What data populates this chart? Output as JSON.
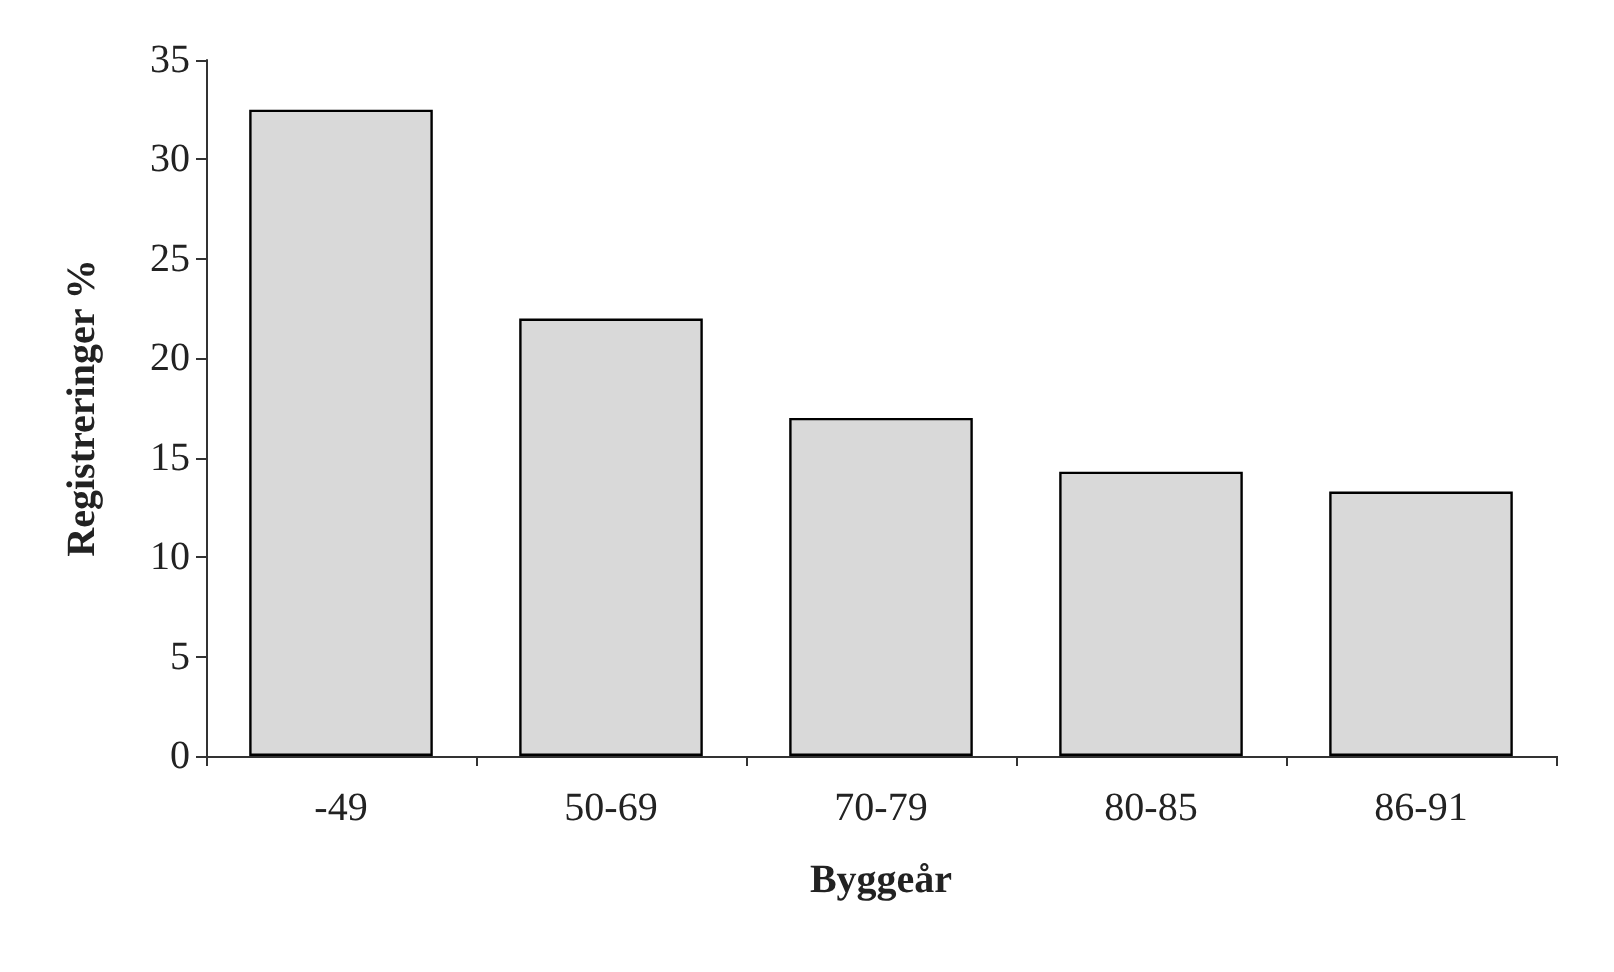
{
  "chart_data": {
    "type": "bar",
    "xlabel": "Byggeår",
    "ylabel": "Registreringer %",
    "categories": [
      "-49",
      "50-69",
      "70-79",
      "80-85",
      "86-91"
    ],
    "values": [
      32.5,
      22,
      17,
      14.3,
      13.3
    ],
    "color": "#d9d9d9",
    "ylim": [
      0,
      35
    ],
    "yticks": [
      0,
      5,
      10,
      15,
      20,
      25,
      30,
      35
    ]
  }
}
